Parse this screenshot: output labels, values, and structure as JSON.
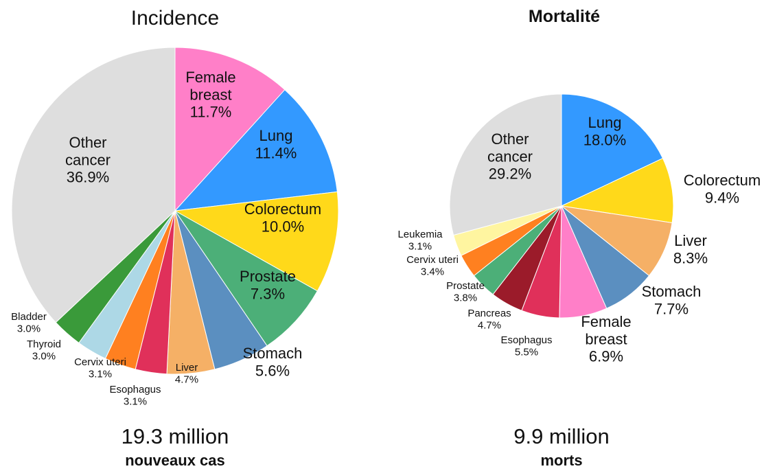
{
  "chart_data": [
    {
      "type": "pie",
      "title": "Incidence",
      "total": "19.3 million",
      "caption": "nouveaux cas",
      "categories": [
        "Female breast",
        "Lung",
        "Colorectum",
        "Prostate",
        "Stomach",
        "Liver",
        "Esophagus",
        "Cervix uteri",
        "Thyroid",
        "Bladder",
        "Other cancer"
      ],
      "values": [
        11.7,
        11.4,
        10.0,
        7.3,
        5.6,
        4.7,
        3.1,
        3.1,
        3.0,
        3.0,
        36.9
      ],
      "value_labels": [
        "11.7%",
        "11.4%",
        "10.0%",
        "7.3%",
        "5.6%",
        "4.7%",
        "3.1%",
        "3.1%",
        "3.0%",
        "3.0%",
        "36.9%"
      ],
      "colors": [
        "#ff7fc8",
        "#3399ff",
        "#ffd91a",
        "#4caf78",
        "#5b8fc0",
        "#f5b066",
        "#e0305a",
        "#ff8020",
        "#add8e6",
        "#3a9a3a",
        "#dedede"
      ]
    },
    {
      "type": "pie",
      "title": "Mortalité",
      "total": "9.9 million",
      "caption": "morts",
      "categories": [
        "Lung",
        "Colorectum",
        "Liver",
        "Stomach",
        "Female breast",
        "Esophagus",
        "Pancreas",
        "Prostate",
        "Cervix uteri",
        "Leukemia",
        "Other cancer"
      ],
      "values": [
        18.0,
        9.4,
        8.3,
        7.7,
        6.9,
        5.5,
        4.7,
        3.8,
        3.4,
        3.1,
        29.2
      ],
      "value_labels": [
        "18.0%",
        "9.4%",
        "8.3%",
        "7.7%",
        "6.9%",
        "5.5%",
        "4.7%",
        "3.8%",
        "3.4%",
        "3.1%",
        "29.2%"
      ],
      "colors": [
        "#3399ff",
        "#ffd91a",
        "#f5b066",
        "#5b8fc0",
        "#ff7fc8",
        "#e0305a",
        "#9b1b2a",
        "#4caf78",
        "#ff8020",
        "#fff5a0",
        "#dedede"
      ]
    }
  ]
}
